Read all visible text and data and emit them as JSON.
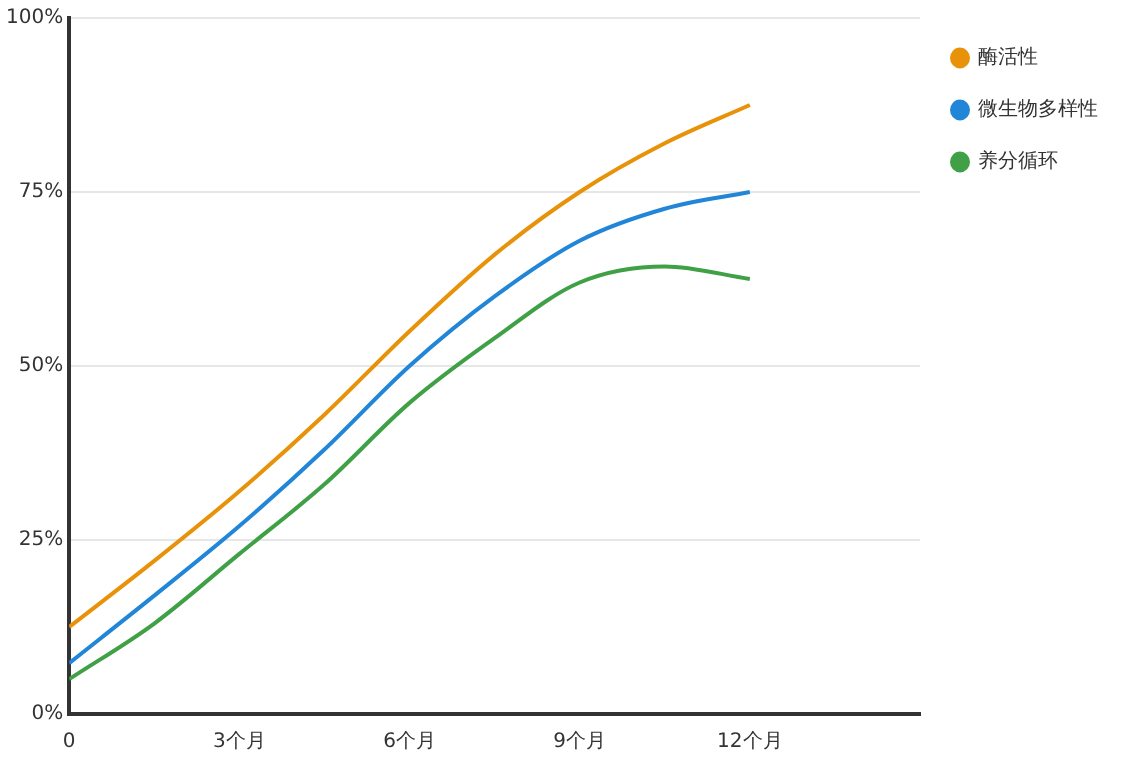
{
  "chart_data": {
    "type": "line",
    "x": [
      0,
      1.5,
      3,
      4.5,
      6,
      7.5,
      9,
      10.5,
      12
    ],
    "series": [
      {
        "name": "酶活性",
        "color": "#e8920a",
        "values": [
          12.5,
          22,
          32,
          43,
          55,
          66,
          75,
          82,
          87.5
        ]
      },
      {
        "name": "微生物多样性",
        "color": "#2185d8",
        "values": [
          7.3,
          17,
          27,
          38,
          50,
          60,
          68,
          72.6,
          75
        ]
      },
      {
        "name": "养分循环",
        "color": "#3fa046",
        "values": [
          5,
          13,
          23,
          33,
          44.7,
          54,
          62,
          64.3,
          62.5
        ]
      }
    ],
    "xlim": [
      0,
      15
    ],
    "xticks": [
      0,
      {
        "value": 3,
        "label": "3个月"
      },
      {
        "value": 6,
        "label": "6个月"
      },
      {
        "value": 9,
        "label": "9个月"
      },
      {
        "value": 12,
        "label": "12个月"
      }
    ],
    "ylim": [
      0,
      100
    ],
    "yticks": [
      {
        "value": 0,
        "label": "0%"
      },
      {
        "value": 25,
        "label": "25%"
      },
      {
        "value": 50,
        "label": "50%"
      },
      {
        "value": 75,
        "label": "75%"
      },
      {
        "value": 100,
        "label": "100%"
      }
    ],
    "grid": "y",
    "legend": "top right",
    "marker": "none",
    "line_style": "solid"
  }
}
